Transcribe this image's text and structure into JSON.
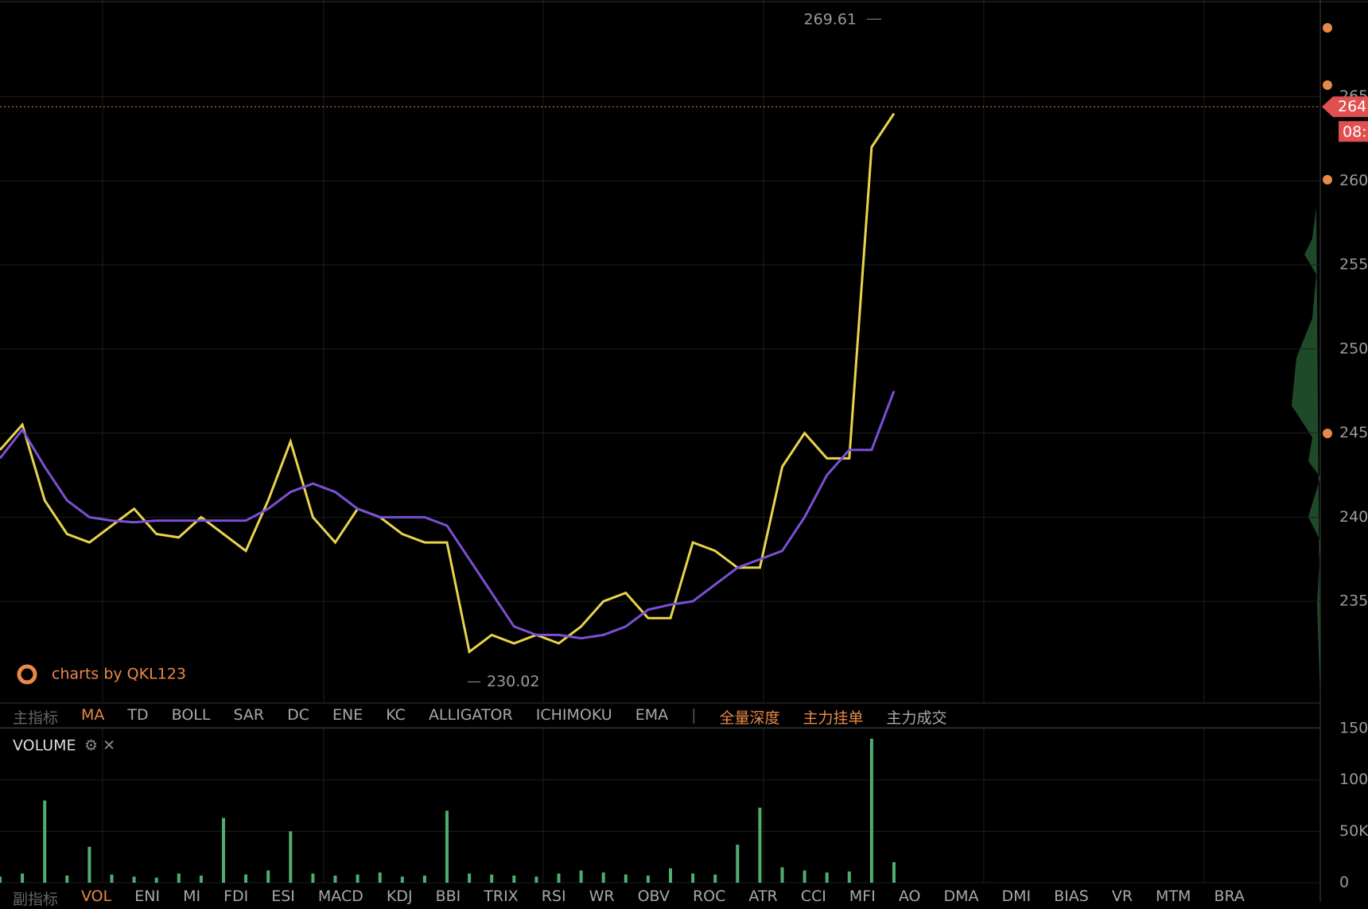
{
  "chart_data": [
    {
      "type": "line",
      "categories": [
        null,
        null,
        null,
        null,
        null,
        null,
        null,
        null,
        null,
        null,
        null,
        null,
        null,
        null,
        null,
        null,
        null,
        null,
        null,
        null,
        null,
        null,
        null,
        null,
        null,
        null,
        null,
        null,
        null,
        null,
        null,
        null,
        null,
        null,
        null,
        null,
        null,
        null,
        null,
        null,
        null
      ],
      "series": [
        {
          "color": "#e8d44d",
          "values": [
            244,
            245.5,
            241,
            239,
            238.5,
            239.5,
            240.5,
            239,
            238.8,
            240,
            239,
            238,
            241,
            244.5,
            240,
            238.5,
            240.5,
            240,
            239,
            238.5,
            238.5,
            232,
            233,
            232.5,
            233,
            232.5,
            233.5,
            235,
            235.5,
            234,
            234,
            238.5,
            238,
            237,
            237,
            243,
            245,
            243.5,
            243.5,
            262,
            264
          ]
        },
        {
          "color": "#7b4fd6",
          "values": [
            243.5,
            245.2,
            243,
            241,
            240,
            239.8,
            239.7,
            239.8,
            239.8,
            239.8,
            239.8,
            239.8,
            240.5,
            241.5,
            242,
            241.5,
            240.5,
            240,
            240,
            240,
            239.5,
            237.5,
            235.5,
            233.5,
            233,
            233,
            232.8,
            233,
            233.5,
            234.5,
            234.8,
            235,
            236,
            237,
            237.5,
            238,
            240,
            242.5,
            244,
            244,
            247.5
          ]
        }
      ],
      "ylim": [
        229,
        270.75
      ],
      "yticks": [
        235,
        240,
        245,
        250,
        255,
        260,
        265
      ],
      "grid": true,
      "high": 269.61,
      "low": 230.02,
      "current_price": {
        "value": 264.4,
        "label": "264"
      },
      "time_badge": "08:",
      "watermark": "charts by QKL123"
    },
    {
      "type": "bar",
      "title": "VOLUME",
      "categories": [
        null,
        null,
        null,
        null,
        null,
        null,
        null,
        null,
        null,
        null,
        null,
        null,
        null,
        null,
        null,
        null,
        null,
        null,
        null,
        null,
        null,
        null,
        null,
        null,
        null,
        null,
        null,
        null,
        null,
        null,
        null,
        null,
        null,
        null,
        null,
        null,
        null,
        null,
        null,
        null,
        null
      ],
      "values": [
        6000,
        9000,
        80000,
        7000,
        35000,
        8000,
        6000,
        5000,
        9000,
        7000,
        63000,
        8000,
        12000,
        50000,
        9000,
        7000,
        8000,
        10000,
        6000,
        7000,
        70000,
        9000,
        8000,
        7000,
        6000,
        9000,
        12000,
        10000,
        8000,
        7000,
        14000,
        9000,
        8000,
        37000,
        73000,
        15000,
        12000,
        10000,
        11000,
        140000,
        20000
      ],
      "color": "#4fae6f",
      "ylim": [
        0,
        150000
      ],
      "yticks": [
        0,
        {
          "value": 50000,
          "label": "50K"
        },
        {
          "value": 100000,
          "label": "100K"
        },
        {
          "value": 150000,
          "label": "150K"
        }
      ],
      "grid": true
    }
  ],
  "main_toolbar": [
    "主指标",
    "MA",
    "TD",
    "BOLL",
    "SAR",
    "DC",
    "ENE",
    "KC",
    "ALLIGATOR",
    "ICHIMOKU",
    "EMA",
    "|",
    "全量深度",
    "主力挂单",
    "主力成交"
  ],
  "sub_toolbar": [
    "副指标",
    "VOL",
    "ENI",
    "MI",
    "FDI",
    "ESI",
    "MACD",
    "KDJ",
    "BBI",
    "TRIX",
    "RSI",
    "WR",
    "OBV",
    "ROC",
    "ATR",
    "CCI",
    "MFI",
    "AO",
    "DMA",
    "DMI",
    "BIAS",
    "VR",
    "MTM",
    "BRA"
  ]
}
